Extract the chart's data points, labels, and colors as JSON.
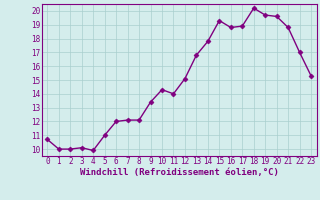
{
  "x": [
    0,
    1,
    2,
    3,
    4,
    5,
    6,
    7,
    8,
    9,
    10,
    11,
    12,
    13,
    14,
    15,
    16,
    17,
    18,
    19,
    20,
    21,
    22,
    23
  ],
  "y": [
    10.7,
    10.0,
    10.0,
    10.1,
    9.9,
    11.0,
    12.0,
    12.1,
    12.1,
    13.4,
    14.3,
    14.0,
    15.1,
    16.8,
    17.8,
    19.3,
    18.8,
    18.9,
    20.2,
    19.7,
    19.6,
    18.8,
    17.0,
    15.3
  ],
  "line_color": "#800080",
  "marker": "D",
  "markersize": 2.5,
  "bg_color": "#d4edec",
  "grid_color": "#aacfce",
  "xlabel": "Windchill (Refroidissement éolien,°C)",
  "ylim": [
    9.5,
    20.5
  ],
  "xlim": [
    -0.5,
    23.5
  ],
  "yticks": [
    10,
    11,
    12,
    13,
    14,
    15,
    16,
    17,
    18,
    19,
    20
  ],
  "xticks": [
    0,
    1,
    2,
    3,
    4,
    5,
    6,
    7,
    8,
    9,
    10,
    11,
    12,
    13,
    14,
    15,
    16,
    17,
    18,
    19,
    20,
    21,
    22,
    23
  ],
  "axis_color": "#800080",
  "linewidth": 1.0,
  "tick_fontsize": 5.5,
  "xlabel_fontsize": 6.5
}
